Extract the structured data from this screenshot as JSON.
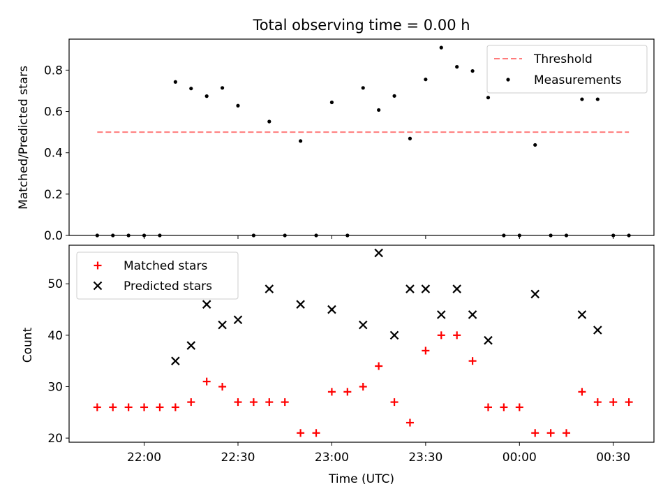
{
  "title": "Total observing time = 0.00 h",
  "colors": {
    "threshold": "#ff7b7b",
    "measurement": "#000000",
    "matched": "#ff0000",
    "predicted": "#000000"
  },
  "chart_data": [
    {
      "type": "scatter",
      "panel": "top",
      "title": "Total observing time = 0.00 h",
      "xlabel": "",
      "ylabel": "Matched/Predicted stars",
      "xlim": [
        "21:36",
        "00:43"
      ],
      "ylim": [
        0,
        0.95
      ],
      "yticks": [
        0.0,
        0.2,
        0.4,
        0.6,
        0.8
      ],
      "ytick_labels": [
        "0.0",
        "0.2",
        "0.4",
        "0.6",
        "0.8"
      ],
      "legend_position": "upper right",
      "threshold": {
        "name": "Threshold",
        "value": 0.5,
        "x_range": [
          "21:45",
          "00:35"
        ],
        "style": "dashed"
      },
      "series": [
        {
          "name": "Measurements",
          "marker": "dot",
          "x": [
            "21:45",
            "21:50",
            "21:55",
            "22:00",
            "22:05",
            "22:10",
            "22:15",
            "22:20",
            "22:25",
            "22:30",
            "22:35",
            "22:40",
            "22:45",
            "22:50",
            "22:55",
            "23:00",
            "23:05",
            "23:10",
            "23:15",
            "23:20",
            "23:25",
            "23:30",
            "23:35",
            "23:40",
            "23:45",
            "23:50",
            "23:55",
            "00:00",
            "00:05",
            "00:10",
            "00:15",
            "00:20",
            "00:25",
            "00:30",
            "00:35"
          ],
          "y": [
            0,
            0,
            0,
            0,
            0,
            0.743,
            0.711,
            0.674,
            0.714,
            0.628,
            0,
            0.551,
            0,
            0.457,
            0,
            0.644,
            0,
            0.714,
            0.607,
            0.675,
            0.469,
            0.755,
            0.909,
            0.816,
            0.796,
            0.667,
            0,
            0,
            0.438,
            0,
            0,
            0.659,
            0.659,
            0,
            0
          ]
        }
      ]
    },
    {
      "type": "scatter",
      "panel": "bottom",
      "xlabel": "Time (UTC)",
      "ylabel": "Count",
      "xlim": [
        "21:36",
        "00:43"
      ],
      "ylim": [
        19.2,
        57.5
      ],
      "yticks": [
        20,
        30,
        40,
        50
      ],
      "ytick_labels": [
        "20",
        "30",
        "40",
        "50"
      ],
      "xticks": [
        "22:00",
        "22:30",
        "23:00",
        "23:30",
        "00:00",
        "00:30"
      ],
      "legend_position": "upper left",
      "series": [
        {
          "name": "Matched stars",
          "marker": "plus",
          "x": [
            "21:45",
            "21:50",
            "21:55",
            "22:00",
            "22:05",
            "22:10",
            "22:15",
            "22:20",
            "22:25",
            "22:30",
            "22:35",
            "22:40",
            "22:45",
            "22:50",
            "22:55",
            "23:00",
            "23:05",
            "23:10",
            "23:15",
            "23:20",
            "23:25",
            "23:30",
            "23:35",
            "23:40",
            "23:45",
            "23:50",
            "23:55",
            "00:00",
            "00:05",
            "00:10",
            "00:15",
            "00:20",
            "00:25",
            "00:30",
            "00:35"
          ],
          "y": [
            26,
            26,
            26,
            26,
            26,
            26,
            27,
            31,
            30,
            27,
            27,
            27,
            27,
            21,
            21,
            29,
            29,
            30,
            34,
            27,
            23,
            37,
            40,
            40,
            35,
            26,
            26,
            26,
            21,
            21,
            21,
            29,
            27,
            27,
            27
          ]
        },
        {
          "name": "Predicted stars",
          "marker": "x",
          "x": [
            "22:10",
            "22:15",
            "22:20",
            "22:25",
            "22:30",
            "22:40",
            "22:50",
            "23:00",
            "23:10",
            "23:15",
            "23:20",
            "23:25",
            "23:30",
            "23:35",
            "23:40",
            "23:45",
            "23:50",
            "00:05",
            "00:20",
            "00:25"
          ],
          "y": [
            35,
            38,
            46,
            42,
            43,
            49,
            46,
            45,
            42,
            56,
            40,
            49,
            49,
            44,
            49,
            44,
            39,
            48,
            44,
            41
          ]
        }
      ]
    }
  ]
}
